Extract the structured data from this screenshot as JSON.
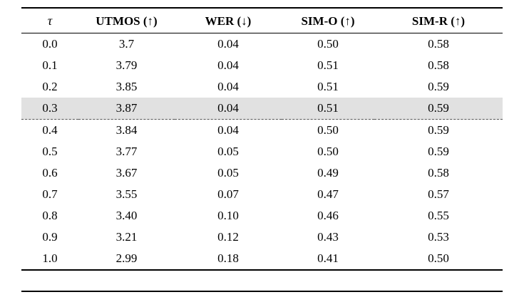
{
  "table": {
    "columns": [
      "τ",
      "UTMOS (↑)",
      "WER (↓)",
      "SIM-O (↑)",
      "SIM-R (↑)"
    ],
    "rows": [
      [
        "0.0",
        "3.7",
        "0.04",
        "0.50",
        "0.58"
      ],
      [
        "0.1",
        "3.79",
        "0.04",
        "0.51",
        "0.58"
      ],
      [
        "0.2",
        "3.85",
        "0.04",
        "0.51",
        "0.59"
      ],
      [
        "0.3",
        "3.87",
        "0.04",
        "0.51",
        "0.59"
      ],
      [
        "0.4",
        "3.84",
        "0.04",
        "0.50",
        "0.59"
      ],
      [
        "0.5",
        "3.77",
        "0.05",
        "0.50",
        "0.59"
      ],
      [
        "0.6",
        "3.67",
        "0.05",
        "0.49",
        "0.58"
      ],
      [
        "0.7",
        "3.55",
        "0.07",
        "0.47",
        "0.57"
      ],
      [
        "0.8",
        "3.40",
        "0.10",
        "0.46",
        "0.55"
      ],
      [
        "0.9",
        "3.21",
        "0.12",
        "0.43",
        "0.53"
      ],
      [
        "1.0",
        "2.99",
        "0.18",
        "0.41",
        "0.50"
      ]
    ],
    "highlighted_row_index": 3,
    "highlight_color": "#e1e1e1"
  }
}
